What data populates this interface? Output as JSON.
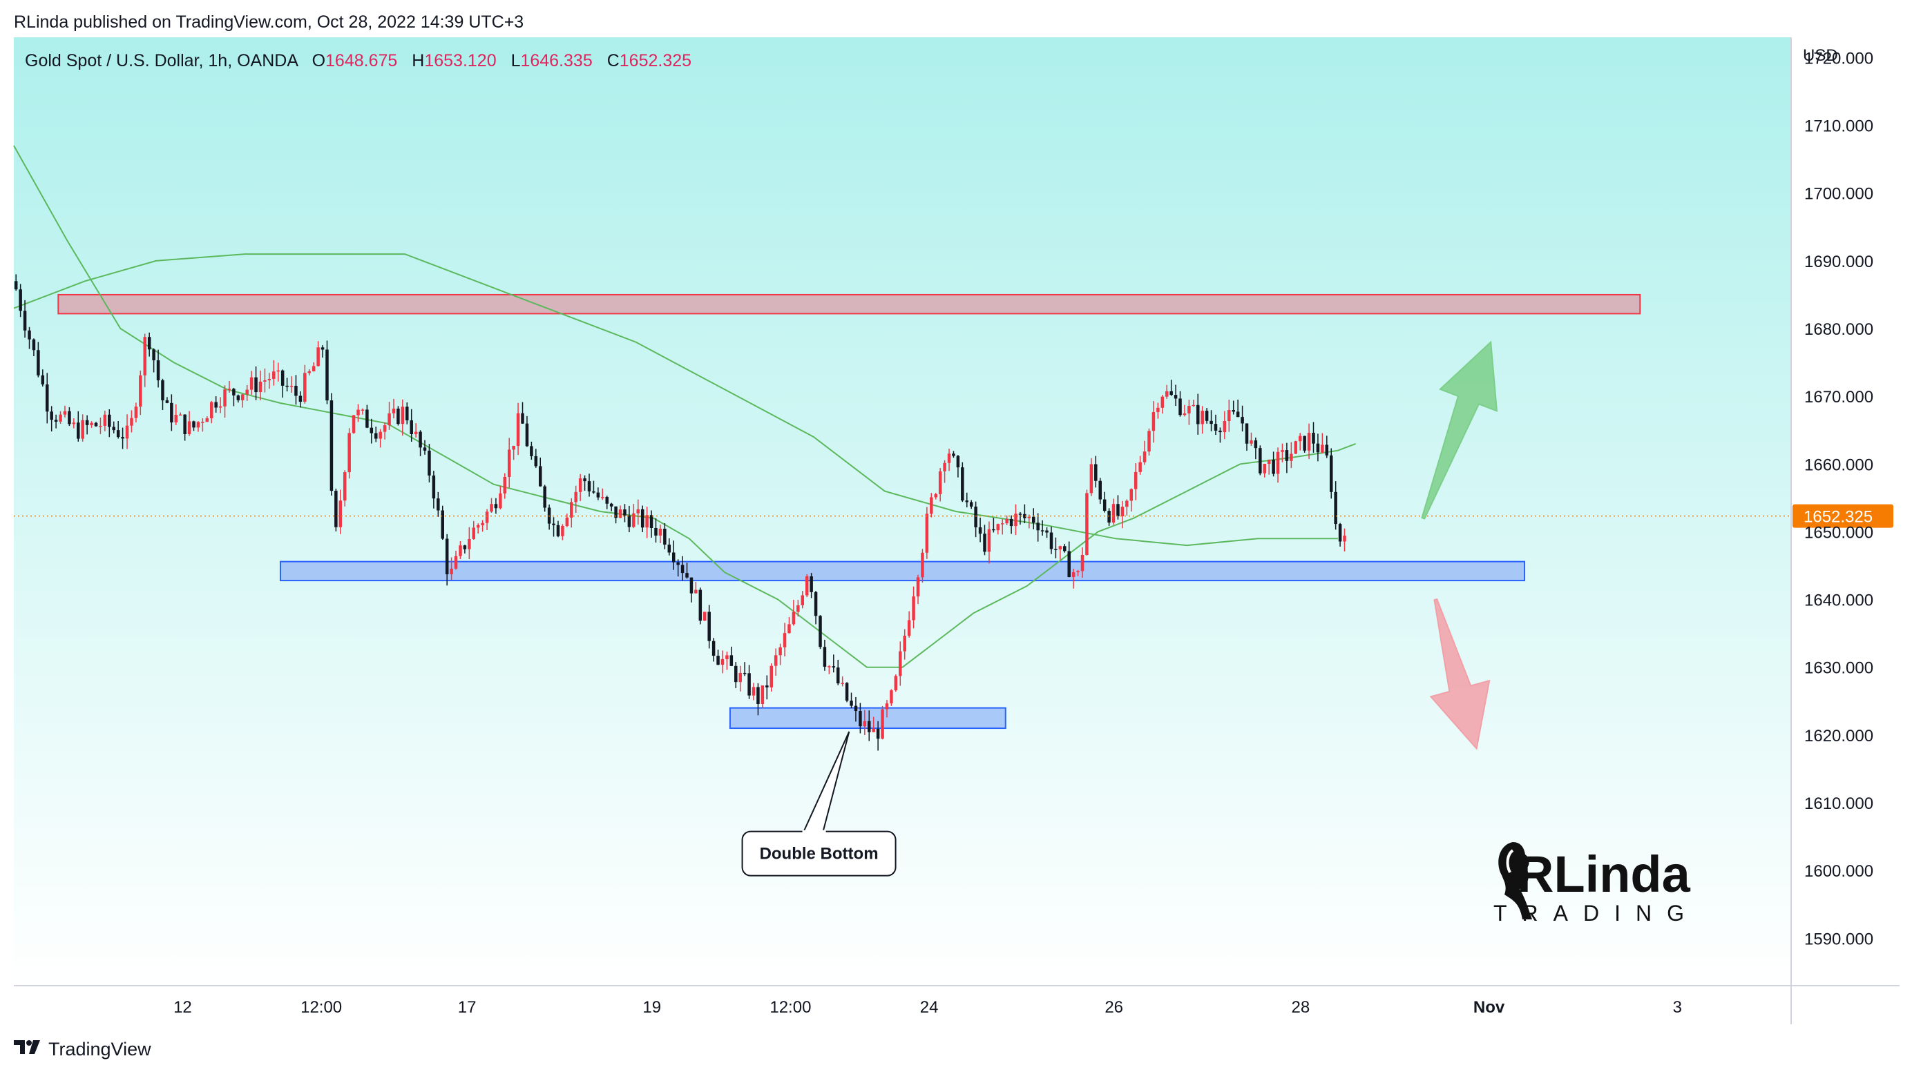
{
  "header": {
    "published_by": "RLinda published on TradingView.com, Oct 28, 2022 14:39 UTC+3"
  },
  "legend": {
    "symbol": "Gold Spot / U.S. Dollar, 1h, OANDA",
    "open_label": "O",
    "open": "1648.675",
    "high_label": "H",
    "high": "1653.120",
    "low_label": "L",
    "low": "1646.335",
    "close_label": "C",
    "close": "1652.325"
  },
  "footer": {
    "brand": "TradingView",
    "logo_icon": "tradingview-logo-icon"
  },
  "watermark": {
    "text_main": "RLinda",
    "text_sub": "TRADING",
    "logo_icon": "woman-profile-icon"
  },
  "colors": {
    "background_top": "#aef0ec",
    "background_bottom": "#ffffff",
    "candle_up": "#f23645",
    "candle_down": "#131722",
    "ma": "#5cb85c",
    "resistance_fill": "#d9a8b3",
    "resistance_border": "#f23645",
    "support_fill": "#9ec0f7",
    "support_border": "#2962ff",
    "price_label": "#f57c00",
    "arrow_up": "#7ccf8a",
    "arrow_down": "#f2a0a8"
  },
  "chart_data": {
    "type": "candlestick",
    "title": "Gold Spot / U.S. Dollar, 1h, OANDA",
    "currency": "USD",
    "ylim": [
      1583,
      1723
    ],
    "y_ticks": [
      "1720.000",
      "1710.000",
      "1700.000",
      "1690.000",
      "1680.000",
      "1670.000",
      "1660.000",
      "1650.000",
      "1640.000",
      "1630.000",
      "1620.000",
      "1610.000",
      "1600.000",
      "1590.000"
    ],
    "y_tick_values": [
      1720,
      1710,
      1700,
      1690,
      1680,
      1670,
      1660,
      1650,
      1640,
      1630,
      1620,
      1610,
      1600,
      1590
    ],
    "x_ticks": [
      "12",
      "12:00",
      "17",
      "19",
      "12:00",
      "24",
      "26",
      "28",
      "Nov",
      "3"
    ],
    "x_tick_positions": [
      0.095,
      0.173,
      0.255,
      0.359,
      0.437,
      0.515,
      0.619,
      0.724,
      0.83,
      0.936
    ],
    "current_price": 1652.325,
    "current_price_label": "1652.325",
    "close_path": [
      [
        0.0,
        1687
      ],
      [
        0.02,
        1668
      ],
      [
        0.035,
        1665
      ],
      [
        0.05,
        1666
      ],
      [
        0.065,
        1664
      ],
      [
        0.075,
        1680
      ],
      [
        0.085,
        1668
      ],
      [
        0.1,
        1665
      ],
      [
        0.115,
        1670
      ],
      [
        0.13,
        1671
      ],
      [
        0.145,
        1673
      ],
      [
        0.16,
        1670
      ],
      [
        0.17,
        1675
      ],
      [
        0.175,
        1678
      ],
      [
        0.18,
        1647
      ],
      [
        0.19,
        1668
      ],
      [
        0.205,
        1665
      ],
      [
        0.22,
        1668
      ],
      [
        0.235,
        1658
      ],
      [
        0.245,
        1643
      ],
      [
        0.255,
        1649
      ],
      [
        0.27,
        1654
      ],
      [
        0.285,
        1667
      ],
      [
        0.295,
        1657
      ],
      [
        0.305,
        1650
      ],
      [
        0.32,
        1658
      ],
      [
        0.335,
        1653
      ],
      [
        0.35,
        1652
      ],
      [
        0.365,
        1650
      ],
      [
        0.38,
        1643
      ],
      [
        0.395,
        1632
      ],
      [
        0.41,
        1628
      ],
      [
        0.42,
        1625
      ],
      [
        0.43,
        1632
      ],
      [
        0.44,
        1638
      ],
      [
        0.447,
        1645
      ],
      [
        0.455,
        1632
      ],
      [
        0.465,
        1627
      ],
      [
        0.475,
        1622
      ],
      [
        0.485,
        1620
      ],
      [
        0.495,
        1626
      ],
      [
        0.505,
        1640
      ],
      [
        0.515,
        1653
      ],
      [
        0.525,
        1663
      ],
      [
        0.535,
        1655
      ],
      [
        0.545,
        1648
      ],
      [
        0.56,
        1652
      ],
      [
        0.575,
        1652
      ],
      [
        0.59,
        1646
      ],
      [
        0.6,
        1643
      ],
      [
        0.605,
        1660
      ],
      [
        0.615,
        1653
      ],
      [
        0.625,
        1652
      ],
      [
        0.635,
        1662
      ],
      [
        0.645,
        1671
      ],
      [
        0.66,
        1668
      ],
      [
        0.675,
        1666
      ],
      [
        0.69,
        1667
      ],
      [
        0.7,
        1660
      ],
      [
        0.71,
        1660
      ],
      [
        0.72,
        1662
      ],
      [
        0.73,
        1664
      ],
      [
        0.74,
        1660
      ],
      [
        0.745,
        1648
      ],
      [
        0.75,
        1652
      ]
    ],
    "moving_averages": [
      {
        "name": "",
        "points": [
          [
            0.0,
            1683
          ],
          [
            0.04,
            1687
          ],
          [
            0.08,
            1690
          ],
          [
            0.13,
            1691
          ],
          [
            0.16,
            1691
          ],
          [
            0.22,
            1691
          ],
          [
            0.26,
            1687
          ],
          [
            0.3,
            1683
          ],
          [
            0.35,
            1678
          ],
          [
            0.4,
            1671
          ],
          [
            0.45,
            1664
          ],
          [
            0.49,
            1656
          ],
          [
            0.53,
            1653
          ],
          [
            0.58,
            1651
          ],
          [
            0.62,
            1649
          ],
          [
            0.66,
            1648
          ],
          [
            0.7,
            1649
          ],
          [
            0.73,
            1649
          ],
          [
            0.745,
            1649
          ]
        ]
      },
      {
        "name": "",
        "points": [
          [
            0.0,
            1707
          ],
          [
            0.03,
            1693
          ],
          [
            0.06,
            1680
          ],
          [
            0.09,
            1675
          ],
          [
            0.12,
            1671
          ],
          [
            0.15,
            1669
          ],
          [
            0.17,
            1668
          ],
          [
            0.19,
            1667
          ],
          [
            0.21,
            1666
          ],
          [
            0.23,
            1663
          ],
          [
            0.25,
            1660
          ],
          [
            0.27,
            1657
          ],
          [
            0.3,
            1655
          ],
          [
            0.33,
            1653
          ],
          [
            0.36,
            1652
          ],
          [
            0.38,
            1649
          ],
          [
            0.4,
            1644
          ],
          [
            0.43,
            1640
          ],
          [
            0.46,
            1634
          ],
          [
            0.48,
            1630
          ],
          [
            0.5,
            1630
          ],
          [
            0.52,
            1634
          ],
          [
            0.54,
            1638
          ],
          [
            0.57,
            1642
          ],
          [
            0.59,
            1646
          ],
          [
            0.61,
            1650
          ],
          [
            0.63,
            1652
          ],
          [
            0.66,
            1656
          ],
          [
            0.69,
            1660
          ],
          [
            0.72,
            1661
          ],
          [
            0.745,
            1662
          ],
          [
            0.755,
            1663
          ]
        ]
      }
    ],
    "zones": [
      {
        "name": "resistance",
        "y_low": 1682.2,
        "y_high": 1685.0,
        "x_start": 0.025,
        "x_end": 0.915
      },
      {
        "name": "support",
        "y_low": 1642.8,
        "y_high": 1645.6,
        "x_start": 0.15,
        "x_end": 0.85
      },
      {
        "name": "double-bottom-zone",
        "y_low": 1621.0,
        "y_high": 1624.0,
        "x_start": 0.403,
        "x_end": 0.558
      }
    ],
    "annotations": [
      {
        "text": "Double Bottom",
        "x": 0.453,
        "y": 1602.5,
        "pointer_x": 0.47,
        "pointer_y": 1620.5
      }
    ],
    "arrows": [
      {
        "direction": "up",
        "from_x": 0.793,
        "from_y": 1652,
        "to_x": 0.831,
        "to_y": 1678
      },
      {
        "direction": "down",
        "from_x": 0.8,
        "from_y": 1640,
        "to_x": 0.823,
        "to_y": 1618
      }
    ]
  }
}
